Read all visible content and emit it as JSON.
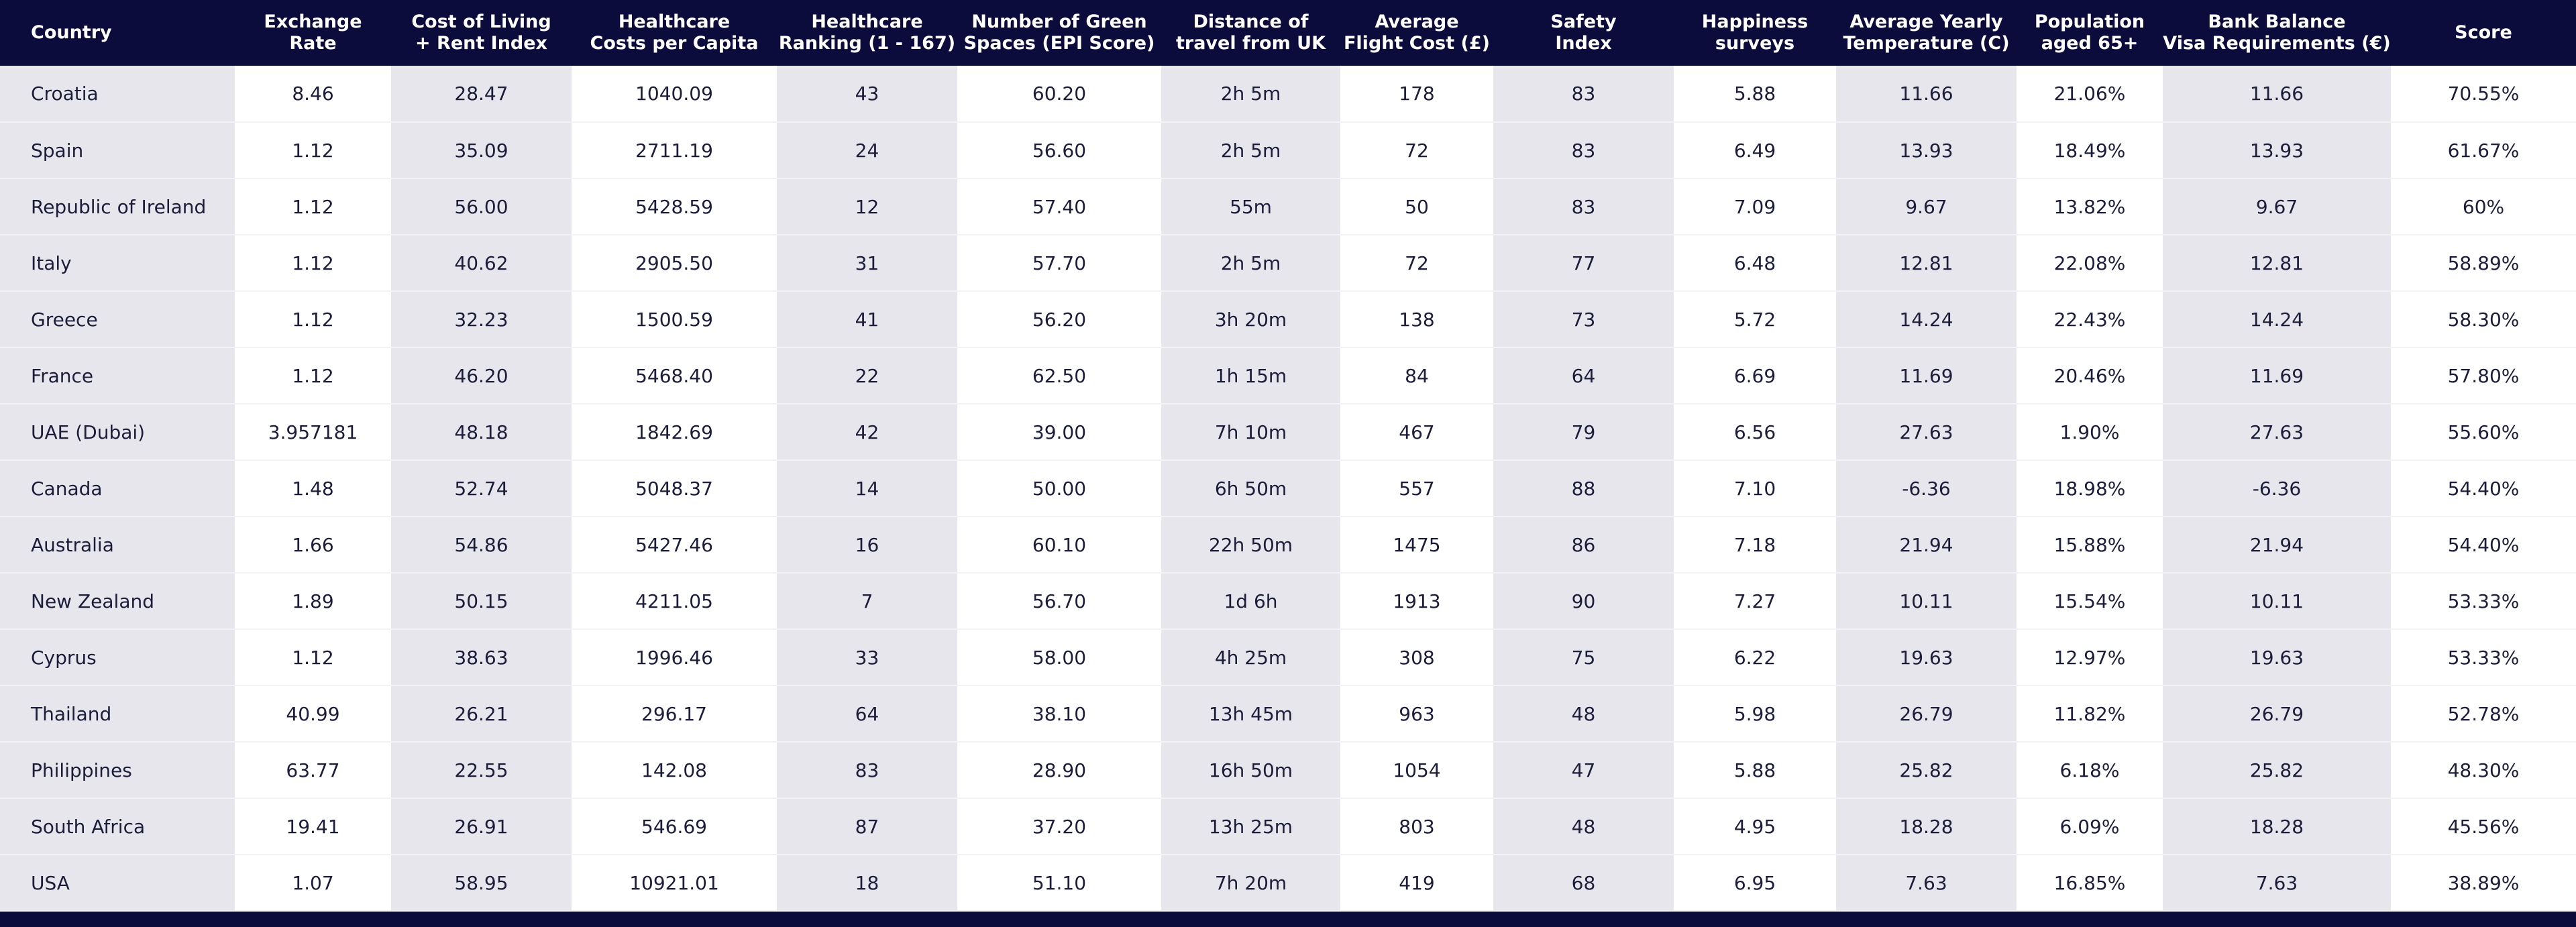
{
  "table": {
    "headers": [
      "Country",
      "Exchange\nRate",
      "Cost of Living\n+ Rent Index",
      "Healthcare\nCosts per Capita",
      "Healthcare\nRanking (1 - 167)",
      "Number of Green\nSpaces (EPI Score)",
      "Distance of\ntravel from UK",
      "Average\nFlight Cost (£)",
      "Safety\nIndex",
      "Happiness\nsurveys",
      "Average Yearly\nTemperature (C)",
      "Population\naged 65+",
      "Bank Balance\nVisa Requirements (€)",
      "Score"
    ],
    "rows": [
      [
        "Croatia",
        "8.46",
        "28.47",
        "1040.09",
        "43",
        "60.20",
        "2h 5m",
        "178",
        "83",
        "5.88",
        "11.66",
        "21.06%",
        "11.66",
        "70.55%"
      ],
      [
        "Spain",
        "1.12",
        "35.09",
        "2711.19",
        "24",
        "56.60",
        "2h 5m",
        "72",
        "83",
        "6.49",
        "13.93",
        "18.49%",
        "13.93",
        "61.67%"
      ],
      [
        "Republic of Ireland",
        "1.12",
        "56.00",
        "5428.59",
        "12",
        "57.40",
        "55m",
        "50",
        "83",
        "7.09",
        "9.67",
        "13.82%",
        "9.67",
        "60%"
      ],
      [
        "Italy",
        "1.12",
        "40.62",
        "2905.50",
        "31",
        "57.70",
        "2h 5m",
        "72",
        "77",
        "6.48",
        "12.81",
        "22.08%",
        "12.81",
        "58.89%"
      ],
      [
        "Greece",
        "1.12",
        "32.23",
        "1500.59",
        "41",
        "56.20",
        "3h 20m",
        "138",
        "73",
        "5.72",
        "14.24",
        "22.43%",
        "14.24",
        "58.30%"
      ],
      [
        "France",
        "1.12",
        "46.20",
        "5468.40",
        "22",
        "62.50",
        "1h 15m",
        "84",
        "64",
        "6.69",
        "11.69",
        "20.46%",
        "11.69",
        "57.80%"
      ],
      [
        "UAE (Dubai)",
        "3.957181",
        "48.18",
        "1842.69",
        "42",
        "39.00",
        "7h 10m",
        "467",
        "79",
        "6.56",
        "27.63",
        "1.90%",
        "27.63",
        "55.60%"
      ],
      [
        "Canada",
        "1.48",
        "52.74",
        "5048.37",
        "14",
        "50.00",
        "6h 50m",
        "557",
        "88",
        "7.10",
        "-6.36",
        "18.98%",
        "-6.36",
        "54.40%"
      ],
      [
        "Australia",
        "1.66",
        "54.86",
        "5427.46",
        "16",
        "60.10",
        "22h 50m",
        "1475",
        "86",
        "7.18",
        "21.94",
        "15.88%",
        "21.94",
        "54.40%"
      ],
      [
        "New Zealand",
        "1.89",
        "50.15",
        "4211.05",
        "7",
        "56.70",
        "1d 6h",
        "1913",
        "90",
        "7.27",
        "10.11",
        "15.54%",
        "10.11",
        "53.33%"
      ],
      [
        "Cyprus",
        "1.12",
        "38.63",
        "1996.46",
        "33",
        "58.00",
        "4h 25m",
        "308",
        "75",
        "6.22",
        "19.63",
        "12.97%",
        "19.63",
        "53.33%"
      ],
      [
        "Thailand",
        "40.99",
        "26.21",
        "296.17",
        "64",
        "38.10",
        "13h 45m",
        "963",
        "48",
        "5.98",
        "26.79",
        "11.82%",
        "26.79",
        "52.78%"
      ],
      [
        "Philippines",
        "63.77",
        "22.55",
        "142.08",
        "83",
        "28.90",
        "16h 50m",
        "1054",
        "47",
        "5.88",
        "25.82",
        "6.18%",
        "25.82",
        "48.30%"
      ],
      [
        "South Africa",
        "19.41",
        "26.91",
        "546.69",
        "87",
        "37.20",
        "13h 25m",
        "803",
        "48",
        "4.95",
        "18.28",
        "6.09%",
        "18.28",
        "45.56%"
      ],
      [
        "USA",
        "1.07",
        "58.95",
        "10921.01",
        "18",
        "51.10",
        "7h 20m",
        "419",
        "68",
        "6.95",
        "7.63",
        "16.85%",
        "7.63",
        "38.89%"
      ]
    ]
  }
}
